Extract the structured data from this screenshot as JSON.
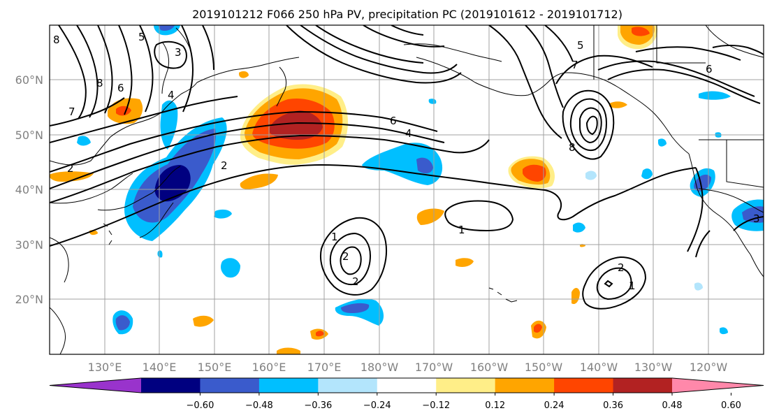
{
  "title": "2019101212 F066 250 hPa PV, precipitation PC (2019101612 - 2019101712)",
  "lat_labels": [
    "60°N",
    "50°N",
    "40°N",
    "30°N",
    "20°N"
  ],
  "lon_labels": [
    "130°E",
    "140°E",
    "150°E",
    "160°E",
    "170°E",
    "180°W",
    "170°W",
    "160°W",
    "150°W",
    "140°W",
    "130°W",
    "120°W"
  ],
  "colorbar": {
    "tick_labels": [
      "−0.60",
      "−0.48",
      "−0.36",
      "−0.24",
      "−0.12",
      "0.12",
      "0.24",
      "0.36",
      "0.48",
      "0.60"
    ],
    "colors": [
      "#9933cc",
      "#000080",
      "#3a5bcc",
      "#00bfff",
      "#b3e5fc",
      "#ffffff",
      "#ffee88",
      "#ffa500",
      "#ff4500",
      "#b22222",
      "#ff88aa"
    ]
  },
  "map": {
    "lon_range": [
      "120°E",
      "110°W"
    ],
    "lat_range": [
      "10°N",
      "70°N"
    ],
    "gridlines": true,
    "contour_labels": [
      "8",
      "6",
      "5",
      "3",
      "7",
      "2",
      "4",
      "8",
      "2",
      "6",
      "4",
      "5",
      "7",
      "6",
      "8",
      "1",
      "1",
      "2",
      "2",
      "1",
      "2",
      "3"
    ]
  }
}
